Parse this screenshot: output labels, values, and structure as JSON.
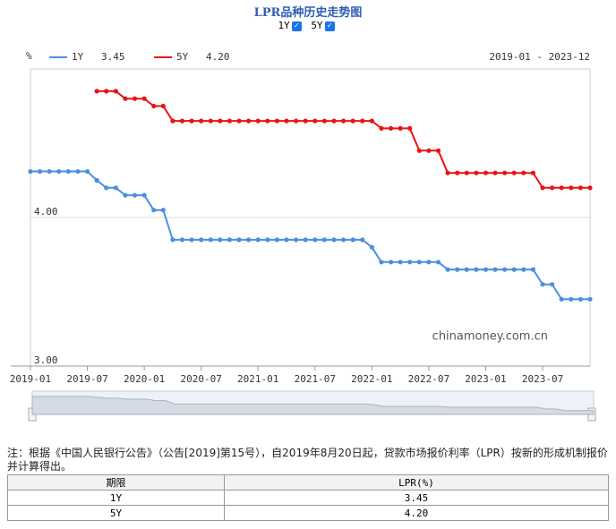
{
  "page": {
    "title": "LPR品种历史走势图",
    "checkboxes": [
      "1Y",
      "5Y"
    ],
    "note": "注：根据《中国人民银行公告》（公告[2019]第15号），自2019年8月20日起，贷款市场报价利率（LPR）按新的形成机制报价并计算得出。"
  },
  "chart_data": {
    "type": "line",
    "unit": "%",
    "date_range": "2019-01 - 2023-12",
    "watermark": "chinamoney.com.cn",
    "categories": [
      "2019-01",
      null,
      null,
      null,
      null,
      null,
      "2019-07",
      null,
      null,
      null,
      null,
      null,
      "2020-01",
      null,
      null,
      null,
      null,
      null,
      "2020-07",
      null,
      null,
      null,
      null,
      null,
      "2021-01",
      null,
      null,
      null,
      null,
      null,
      "2021-07",
      null,
      null,
      null,
      null,
      null,
      "2022-01",
      null,
      null,
      null,
      null,
      null,
      "2022-07",
      null,
      null,
      null,
      null,
      null,
      "2023-01",
      null,
      null,
      null,
      null,
      null,
      "2023-07",
      null,
      null,
      null,
      null,
      null
    ],
    "series": [
      {
        "name": "1Y",
        "color": "#4a8fe0",
        "legend_value": 3.45,
        "values": [
          4.31,
          4.31,
          4.31,
          4.31,
          4.31,
          4.31,
          4.31,
          4.25,
          4.2,
          4.2,
          4.15,
          4.15,
          4.15,
          4.05,
          4.05,
          3.85,
          3.85,
          3.85,
          3.85,
          3.85,
          3.85,
          3.85,
          3.85,
          3.85,
          3.85,
          3.85,
          3.85,
          3.85,
          3.85,
          3.85,
          3.85,
          3.85,
          3.85,
          3.85,
          3.85,
          3.85,
          3.8,
          3.7,
          3.7,
          3.7,
          3.7,
          3.7,
          3.7,
          3.7,
          3.65,
          3.65,
          3.65,
          3.65,
          3.65,
          3.65,
          3.65,
          3.65,
          3.65,
          3.65,
          3.55,
          3.55,
          3.45,
          3.45,
          3.45,
          3.45
        ]
      },
      {
        "name": "5Y",
        "color": "#e81313",
        "legend_value": {
          "value": 4.2,
          "label": "4.20"
        },
        "values": [
          null,
          null,
          null,
          null,
          null,
          null,
          null,
          4.85,
          4.85,
          4.85,
          4.8,
          4.8,
          4.8,
          4.75,
          4.75,
          4.65,
          4.65,
          4.65,
          4.65,
          4.65,
          4.65,
          4.65,
          4.65,
          4.65,
          4.65,
          4.65,
          4.65,
          4.65,
          4.65,
          4.65,
          4.65,
          4.65,
          4.65,
          4.65,
          4.65,
          4.65,
          4.65,
          4.6,
          4.6,
          4.6,
          4.6,
          4.45,
          4.45,
          4.45,
          4.3,
          4.3,
          4.3,
          4.3,
          4.3,
          4.3,
          4.3,
          4.3,
          4.3,
          4.3,
          4.2,
          4.2,
          4.2,
          4.2,
          4.2,
          4.2
        ]
      }
    ],
    "ylim": [
      3,
      5
    ],
    "yticks": [
      {
        "value": 3,
        "label": "3.00"
      },
      {
        "value": 4,
        "label": "4.00"
      }
    ],
    "grid": true
  },
  "table": {
    "header": [
      "期限",
      "LPR(%)"
    ],
    "rows": [
      [
        "1Y",
        "3.45"
      ],
      [
        "5Y",
        "4.20"
      ]
    ]
  }
}
